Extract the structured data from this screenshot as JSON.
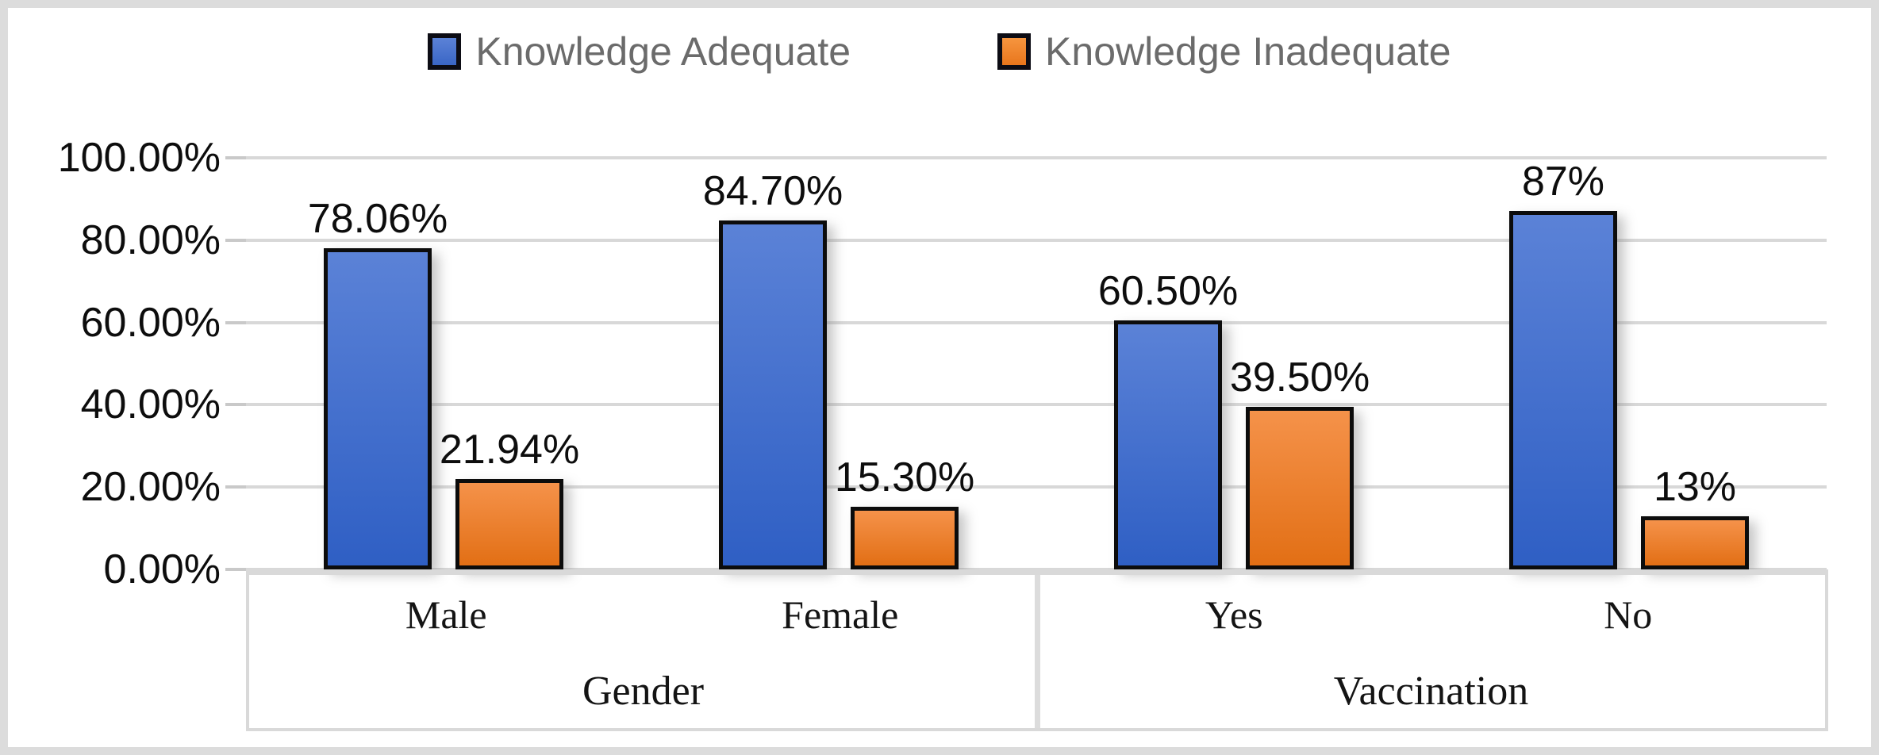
{
  "figure": {
    "background": "#ffffff",
    "frame_color": "#dcdcdc"
  },
  "chart_data": {
    "type": "bar",
    "title": "",
    "xlabel": "",
    "ylabel": "",
    "categories": [
      "Male",
      "Female",
      "Yes",
      "No"
    ],
    "group_axis": [
      {
        "label": "Gender",
        "categories": [
          "Male",
          "Female"
        ]
      },
      {
        "label": "Vaccination",
        "categories": [
          "Yes",
          "No"
        ]
      }
    ],
    "series": [
      {
        "name": "Knowledge Adequate",
        "values": [
          78.06,
          84.7,
          60.5,
          87
        ],
        "data_labels": [
          "78.06%",
          "84.70%",
          "60.50%",
          "87%"
        ],
        "color": "#4472c4"
      },
      {
        "name": "Knowledge Inadequate",
        "values": [
          21.94,
          15.3,
          39.5,
          13
        ],
        "data_labels": [
          "21.94%",
          "15.30%",
          "39.50%",
          "13%"
        ],
        "color": "#ed7d31"
      }
    ],
    "y_axis": {
      "min": 0,
      "max": 100,
      "tick_step": 20,
      "tick_labels": [
        "0.00%",
        "20.00%",
        "40.00%",
        "60.00%",
        "80.00%",
        "100.00%"
      ]
    },
    "grid": true,
    "legend_position": "top",
    "legend_text_color": "#6b6b6b",
    "gridline_color": "#d8d8d8"
  }
}
